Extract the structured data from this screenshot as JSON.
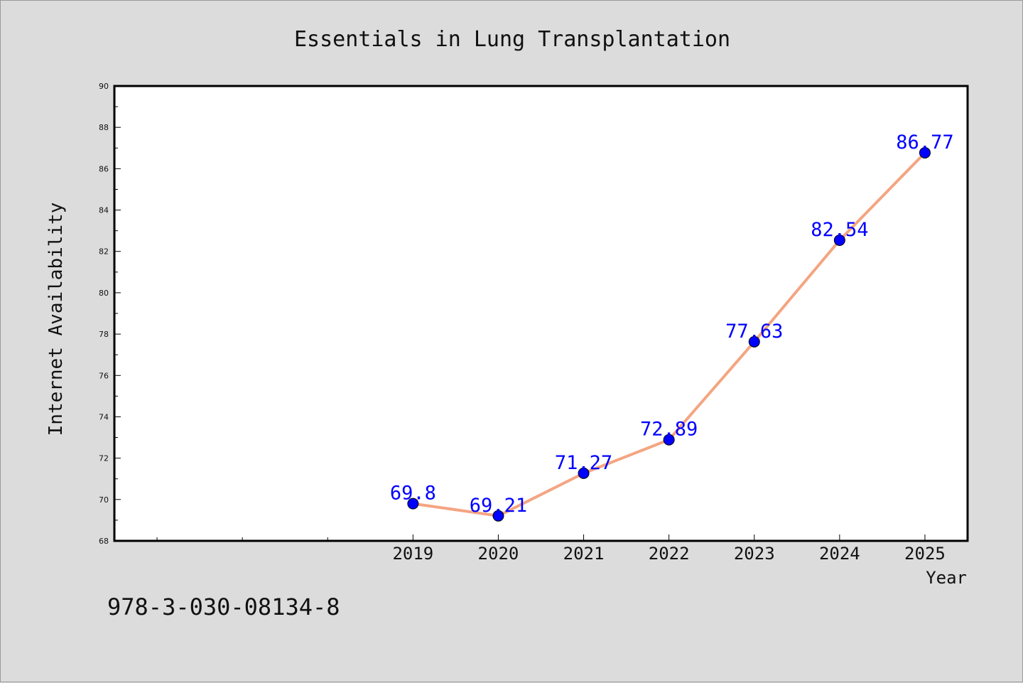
{
  "chart_data": {
    "type": "line",
    "title": "Essentials in Lung Transplantation",
    "xlabel": "Year",
    "ylabel": "Internet Availability",
    "x": [
      2019,
      2020,
      2021,
      2022,
      2023,
      2024,
      2025
    ],
    "x_ticks": [
      "2019",
      "2020",
      "2021",
      "2022",
      "2023",
      "2024",
      "2025"
    ],
    "x_range": [
      2015.5,
      2025.5
    ],
    "y_ticks": [
      "68",
      "70",
      "72",
      "74",
      "76",
      "78",
      "80",
      "82",
      "84",
      "86",
      "88",
      "90"
    ],
    "ylim": [
      68,
      90
    ],
    "series": [
      {
        "values": [
          69.8,
          69.21,
          71.27,
          72.89,
          77.63,
          82.54,
          86.77
        ],
        "labels": [
          "69.8",
          "69.21",
          "71.27",
          "72.89",
          "77.63",
          "82.54",
          "86.77"
        ],
        "line_color": "#f4a582",
        "marker_color": "#0000ff",
        "label_color": "#0000ff"
      }
    ],
    "grid": false,
    "legend": "none"
  },
  "footer": {
    "isbn": "978-3-030-08134-8"
  }
}
